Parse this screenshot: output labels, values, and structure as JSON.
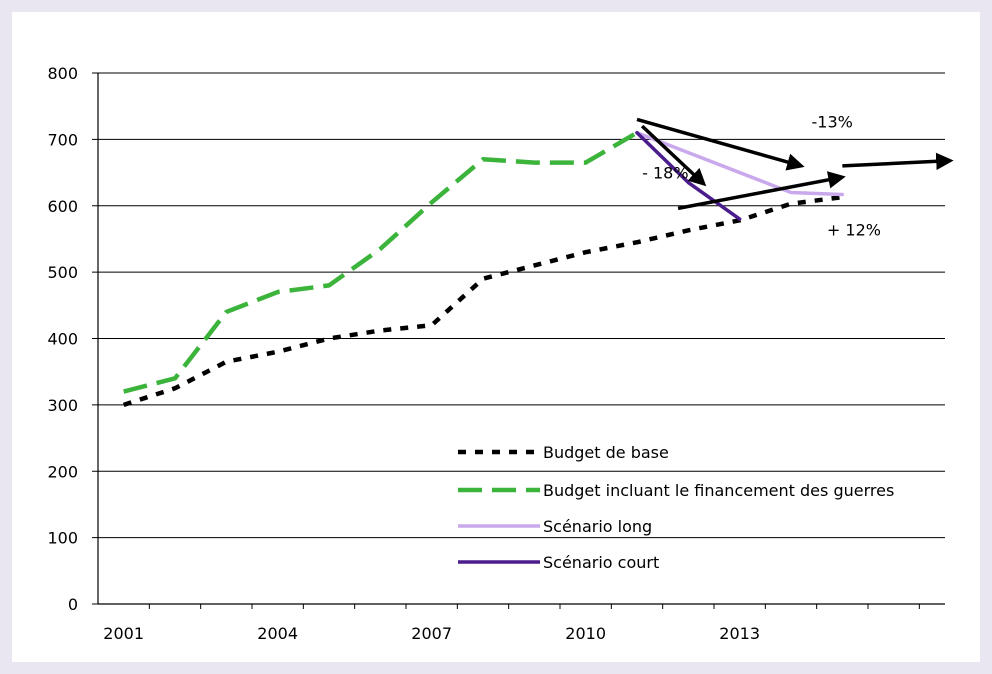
{
  "chart_data": {
    "type": "line",
    "title": "",
    "xlabel": "",
    "ylabel": "",
    "xlim": [
      2000.5,
      2017
    ],
    "ylim": [
      0,
      800
    ],
    "y_ticks": [
      0,
      100,
      200,
      300,
      400,
      500,
      600,
      700,
      800
    ],
    "x_tick_labels": [
      {
        "x": 2001,
        "label": "2001"
      },
      {
        "x": 2004,
        "label": "2004"
      },
      {
        "x": 2007,
        "label": "2007"
      },
      {
        "x": 2010,
        "label": "2010"
      },
      {
        "x": 2013,
        "label": "2013"
      }
    ],
    "grid": "horizontal",
    "legend_position": "bottom-right",
    "series": [
      {
        "name": "Budget de base",
        "style": "dotted",
        "color": "#000000",
        "x": [
          2001,
          2002,
          2003,
          2004,
          2005,
          2006,
          2007,
          2008,
          2009,
          2010,
          2011,
          2012,
          2013,
          2014,
          2015
        ],
        "y": [
          300,
          325,
          365,
          380,
          400,
          412,
          420,
          490,
          510,
          530,
          545,
          563,
          578,
          603,
          613
        ]
      },
      {
        "name": "Budget incluant le financement des guerres",
        "style": "dashed",
        "color": "#3cb43c",
        "x": [
          2001,
          2002,
          2003,
          2004,
          2005,
          2006,
          2007,
          2008,
          2009,
          2010,
          2011
        ],
        "y": [
          320,
          340,
          440,
          470,
          480,
          535,
          605,
          670,
          665,
          665,
          710
        ]
      },
      {
        "name": "Scénario long",
        "style": "solid",
        "color": "#c9a8ec",
        "x": [
          2011,
          2012,
          2013,
          2014,
          2015
        ],
        "y": [
          710,
          680,
          650,
          620,
          617
        ]
      },
      {
        "name": "Scénario court",
        "style": "solid",
        "color": "#4b1d8c",
        "x": [
          2011,
          2012,
          2013
        ],
        "y": [
          710,
          635,
          580
        ]
      }
    ],
    "annotations": [
      {
        "text": "-13%",
        "x": 2014.4,
        "y": 718
      },
      {
        "text": "- 18%",
        "x": 2011.1,
        "y": 641
      },
      {
        "text": "+ 12%",
        "x": 2014.7,
        "y": 555
      }
    ],
    "arrows": [
      {
        "from": [
          2011,
          730
        ],
        "to": [
          2014.2,
          660
        ]
      },
      {
        "from": [
          2011.1,
          720
        ],
        "to": [
          2012.3,
          633
        ]
      },
      {
        "from": [
          2011.8,
          596
        ],
        "to": [
          2015,
          643
        ]
      },
      {
        "from": [
          2015,
          660
        ],
        "to": [
          2017.1,
          668
        ]
      }
    ]
  }
}
